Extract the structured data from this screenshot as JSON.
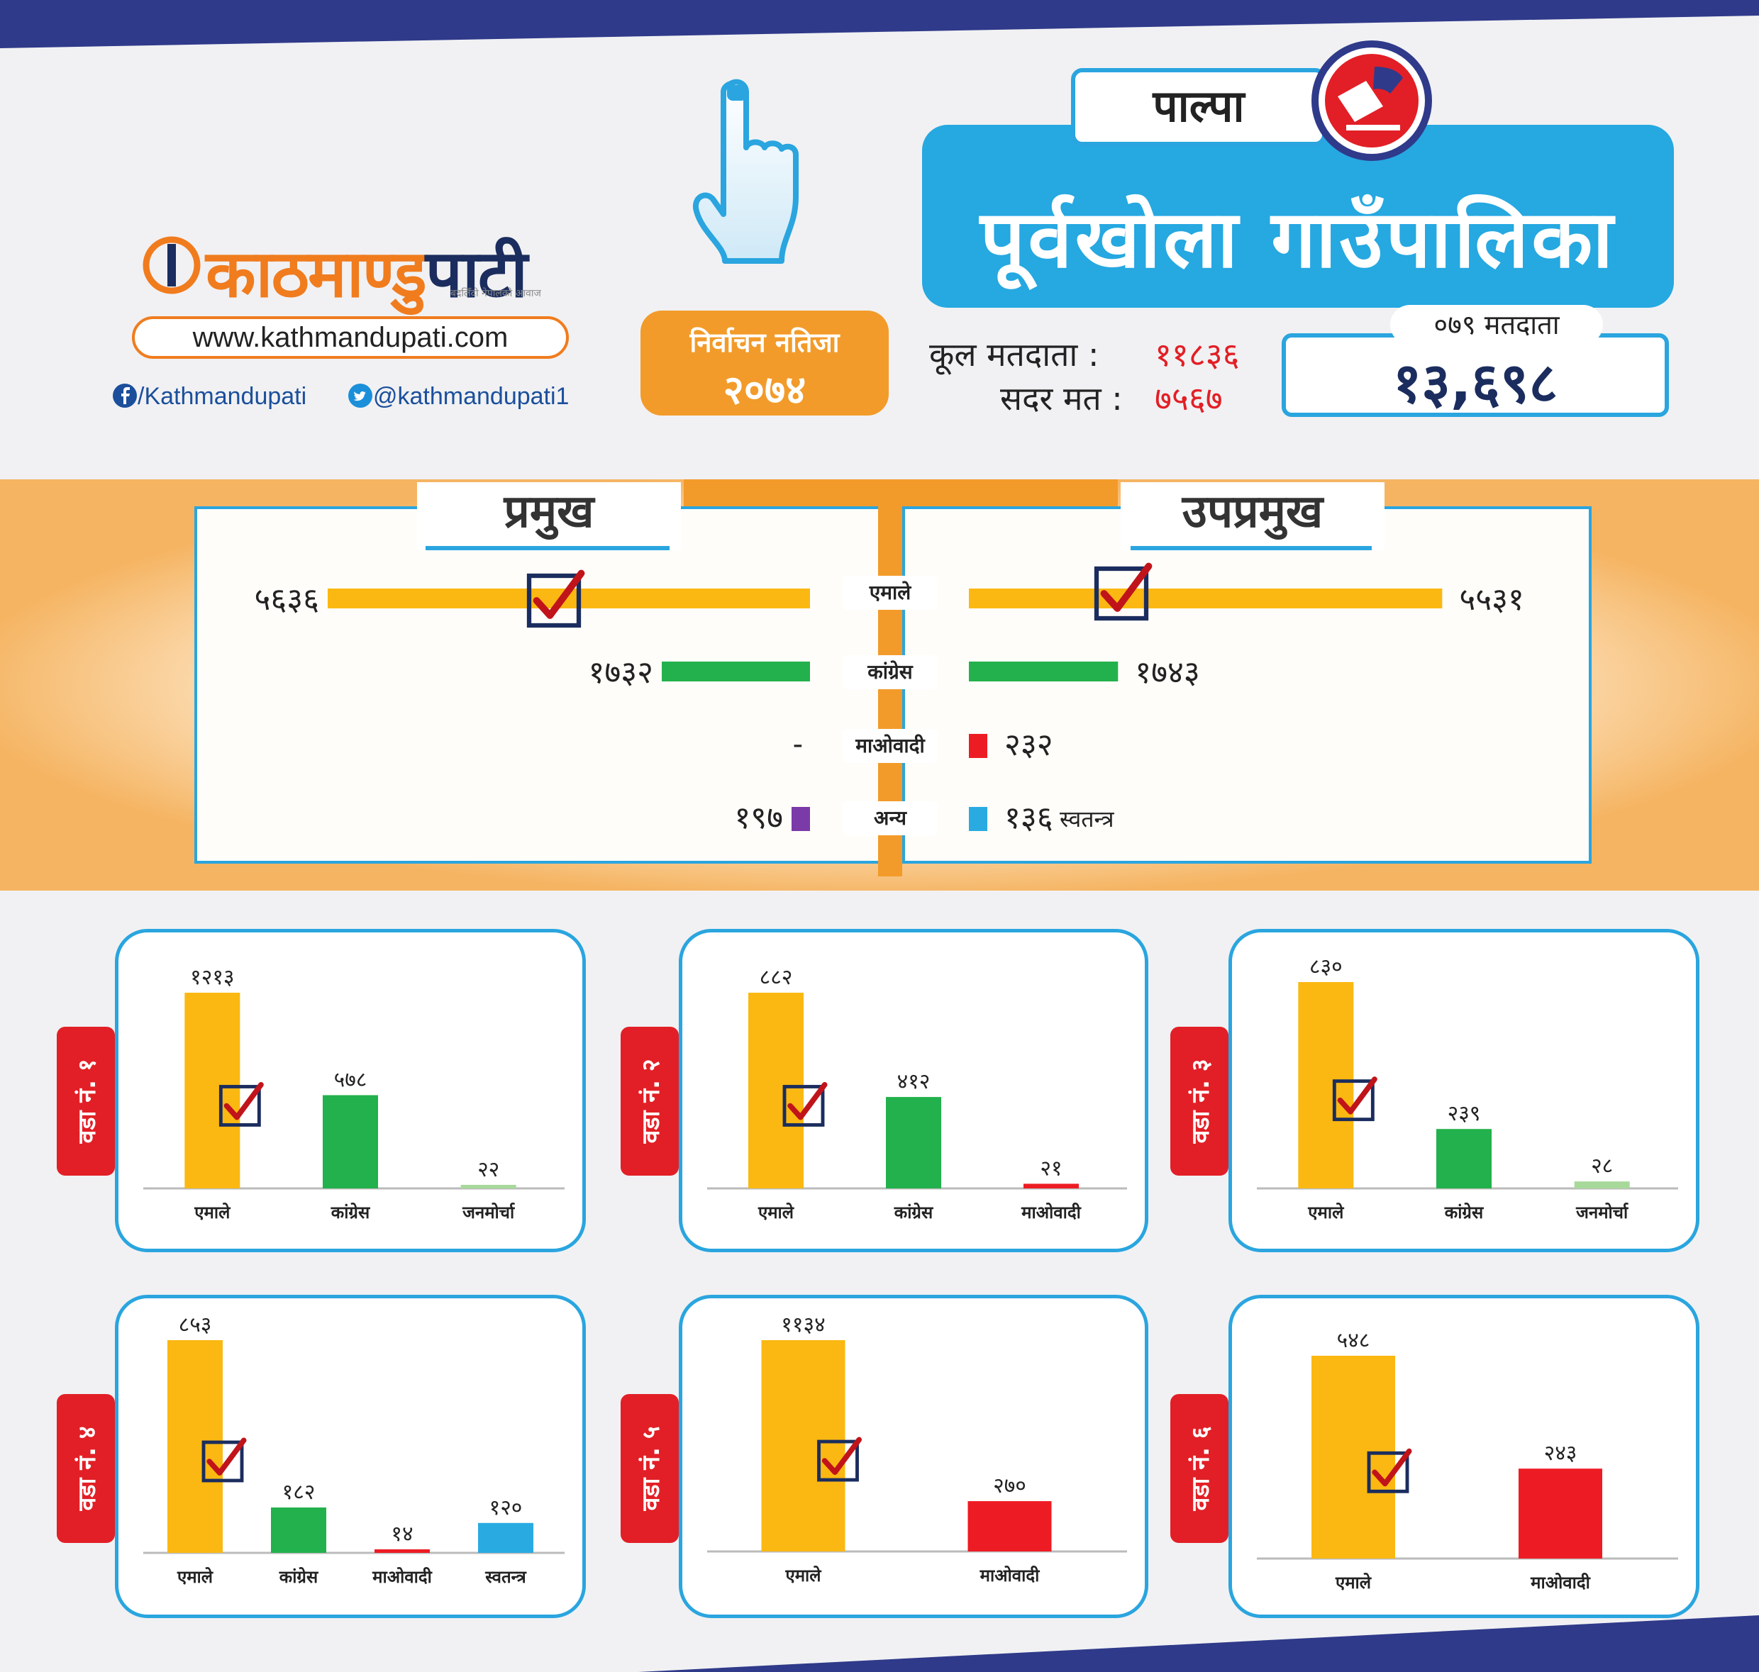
{
  "brand": {
    "logo_a": "काठमाण्डु",
    "logo_b": "पाटी",
    "tagline": "बदलिँदो नेपालको आवाज",
    "website": "www.kathmandupati.com",
    "facebook": "/Kathmandupati",
    "twitter": "@kathmandupati1"
  },
  "badge": {
    "line1": "निर्वाचन नतिजा",
    "line2": "२०७४"
  },
  "header": {
    "district": "पाल्पा",
    "municipality": "पूर्वखोला गाउँपालिका",
    "total_voters_label": "कूल मतदाता :",
    "total_voters_value": "११८३६",
    "valid_votes_label": "सदर मत :",
    "valid_votes_value": "७५६७",
    "voters_079_label": "०७९ मतदाता",
    "voters_079_value": "१३,६९८"
  },
  "colors": {
    "uml": "#fbb812",
    "congress": "#22b14c",
    "maoist": "#ed1c24",
    "other": "#7a3aa8",
    "independent": "#29abe2",
    "janamorcha": "#a7d99a",
    "accent_blue": "#26a8e1",
    "accent_orange": "#f29b2a"
  },
  "chart_data": [
    {
      "type": "bar",
      "title": "प्रमुख",
      "categories": [
        "एमाले",
        "कांग्रेस",
        "माओवादी",
        "अन्य"
      ],
      "values": [
        5636,
        1732,
        null,
        197
      ],
      "labels": [
        "५६३६",
        "१७३२",
        "-",
        "१९७"
      ],
      "winner": "एमाले",
      "orientation": "horizontal"
    },
    {
      "type": "bar",
      "title": "उपप्रमुख",
      "categories": [
        "एमाले",
        "कांग्रेस",
        "माओवादी",
        "स्वतन्त्र"
      ],
      "values": [
        5531,
        1743,
        232,
        136
      ],
      "labels": [
        "५५३१",
        "१७४३",
        "२३२",
        "१३६"
      ],
      "other_label": "स्वतन्त्र",
      "winner": "एमाले",
      "orientation": "horizontal"
    },
    {
      "type": "bar",
      "ward": "वडा नं. १",
      "winner": "एमाले",
      "categories": [
        "एमाले",
        "कांग्रेस",
        "जनमोर्चा"
      ],
      "values": [
        1213,
        578,
        22
      ],
      "labels": [
        "१२१३",
        "५७८",
        "२२"
      ],
      "colors": [
        "#fbb812",
        "#22b14c",
        "#a7d99a"
      ]
    },
    {
      "type": "bar",
      "ward": "वडा नं. २",
      "winner": "एमाले",
      "categories": [
        "एमाले",
        "कांग्रेस",
        "माओवादी"
      ],
      "values": [
        882,
        412,
        21
      ],
      "labels": [
        "८८२",
        "४१२",
        "२१"
      ],
      "colors": [
        "#fbb812",
        "#22b14c",
        "#ed1c24"
      ]
    },
    {
      "type": "bar",
      "ward": "वडा नं. ३",
      "winner": "एमाले",
      "categories": [
        "एमाले",
        "कांग्रेस",
        "जनमोर्चा"
      ],
      "values": [
        830,
        239,
        28
      ],
      "labels": [
        "८३०",
        "२३९",
        "२८"
      ],
      "colors": [
        "#fbb812",
        "#22b14c",
        "#a7d99a"
      ]
    },
    {
      "type": "bar",
      "ward": "वडा नं. ४",
      "winner": "एमाले",
      "categories": [
        "एमाले",
        "कांग्रेस",
        "माओवादी",
        "स्वतन्त्र"
      ],
      "values": [
        853,
        182,
        14,
        120
      ],
      "labels": [
        "८५३",
        "१८२",
        "१४",
        "१२०"
      ],
      "colors": [
        "#fbb812",
        "#22b14c",
        "#ed1c24",
        "#29abe2"
      ]
    },
    {
      "type": "bar",
      "ward": "वडा नं. ५",
      "winner": "एमाले",
      "categories": [
        "एमाले",
        "माओवादी"
      ],
      "values": [
        1134,
        270
      ],
      "labels": [
        "११३४",
        "२७०"
      ],
      "colors": [
        "#fbb812",
        "#ed1c24"
      ]
    },
    {
      "type": "bar",
      "ward": "वडा नं. ६",
      "winner": "एमाले",
      "categories": [
        "एमाले",
        "माओवादी"
      ],
      "values": [
        548,
        243
      ],
      "labels": [
        "५४८",
        "२४३"
      ],
      "colors": [
        "#fbb812",
        "#ed1c24"
      ]
    }
  ]
}
